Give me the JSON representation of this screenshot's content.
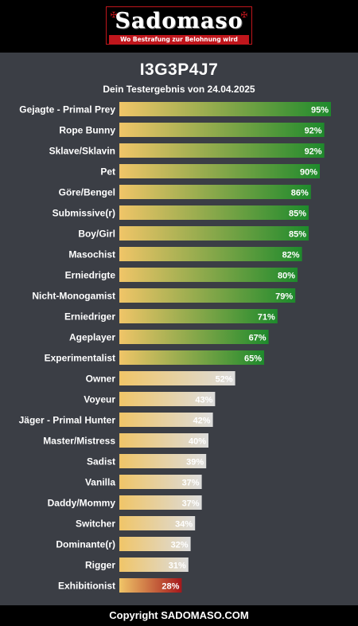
{
  "header": {
    "logo_text": "Sadomaso",
    "logo_tagline": "Wo Bestrafung zur Belohnung wird"
  },
  "result": {
    "code": "I3G3P4J7",
    "subtitle": "Dein Testergebnis von 24.04.2025"
  },
  "colors": {
    "bar_start": "#f0c568",
    "high_end": "#1e8a2c",
    "mid_end": "#dcdcdc",
    "low_end": "#a5181c"
  },
  "chart_data": {
    "type": "bar",
    "orientation": "horizontal",
    "categories": [
      "Gejagte - Primal Prey",
      "Rope Bunny",
      "Sklave/Sklavin",
      "Pet",
      "Göre/Bengel",
      "Submissive(r)",
      "Boy/Girl",
      "Masochist",
      "Erniedrigte",
      "Nicht-Monogamist",
      "Erniedriger",
      "Ageplayer",
      "Experimentalist",
      "Owner",
      "Voyeur",
      "Jäger - Primal Hunter",
      "Master/Mistress",
      "Sadist",
      "Vanilla",
      "Daddy/Mommy",
      "Switcher",
      "Dominante(r)",
      "Rigger",
      "Exhibitionist"
    ],
    "values": [
      95,
      92,
      92,
      90,
      86,
      85,
      85,
      82,
      80,
      79,
      71,
      67,
      65,
      52,
      43,
      42,
      40,
      39,
      37,
      37,
      34,
      32,
      31,
      28
    ],
    "value_labels": [
      "95%",
      "92%",
      "92%",
      "90%",
      "86%",
      "85%",
      "85%",
      "82%",
      "80%",
      "79%",
      "71%",
      "67%",
      "65%",
      "52%",
      "43%",
      "42%",
      "40%",
      "39%",
      "37%",
      "37%",
      "34%",
      "32%",
      "31%",
      "28%"
    ],
    "xlim": [
      0,
      100
    ],
    "grid": false,
    "legend": "none"
  },
  "footer": {
    "copyright": "Copyright SADOMASO.COM"
  }
}
